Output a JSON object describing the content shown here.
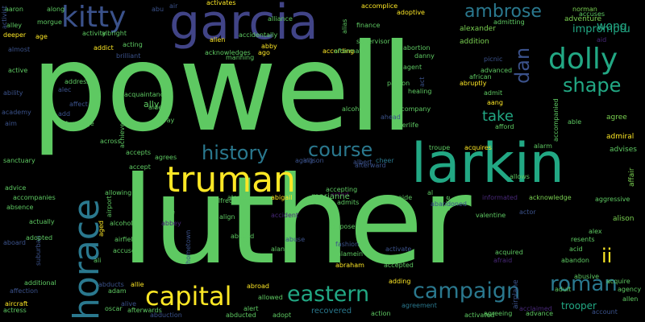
{
  "palette": {
    "background": "#000000",
    "yellow": "#fde725",
    "light_green": "#7ad151",
    "green": "#5ec962",
    "teal_green": "#22a884",
    "teal": "#2a788e",
    "blue": "#3b528b",
    "indigo": "#414487",
    "purple": "#482878",
    "dark_purple": "#440154"
  },
  "words": [
    "powell",
    "luther",
    "larkin",
    "garcia",
    "truman",
    "horace",
    "kitty",
    "dolly",
    "capital",
    "campaign",
    "eastern",
    "history",
    "course",
    "roman",
    "shape",
    "ambrose",
    "dan",
    "take",
    "ii",
    "wong",
    "impromptu",
    "alexander",
    "admitting",
    "addition",
    "norman",
    "accuses",
    "adventure",
    "aid",
    "advises",
    "affair",
    "admiral",
    "agree",
    "able",
    "accompanied",
    "afford",
    "alarm",
    "allows",
    "alice",
    "aggressive",
    "acknowledge",
    "alison",
    "alex",
    "acquired",
    "abandon",
    "abusive",
    "acquire",
    "agency",
    "allen",
    "account",
    "advance",
    "agreeing",
    "activated",
    "trooper",
    "adult",
    "airplane",
    "afraid",
    "acid",
    "resents",
    "valentine",
    "actor",
    "abandoned",
    "al",
    "aide",
    "alone",
    "activate",
    "accepted",
    "adding",
    "agreement",
    "action",
    "recovered",
    "abraham",
    "fashion",
    "alamein",
    "admits",
    "dispose",
    "accepting",
    "acted",
    "marianne",
    "aging",
    "allison",
    "albert",
    "cheer",
    "afterward",
    "alcohol",
    "afterlife",
    "accompany",
    "ahead",
    "healing",
    "pardon",
    "act",
    "agent",
    "danny",
    "abortion",
    "supervisor",
    "finance",
    "accomplice",
    "adoptive",
    "alias",
    "alliance",
    "activates",
    "air",
    "abu",
    "along",
    "morgue",
    "aaron",
    "activist",
    "alley",
    "deeper",
    "age",
    "activity",
    "albright",
    "acting",
    "brilliant",
    "addict",
    "alien",
    "accidentally",
    "abby",
    "according",
    "aftermath",
    "ago",
    "manning",
    "acknowledges",
    "almost",
    "active",
    "ability",
    "academy",
    "aim",
    "address",
    "alec",
    "affect",
    "add",
    "advantage",
    "acquaintance",
    "aided",
    "stray",
    "ally",
    "across",
    "accepts",
    "achieve",
    "accept",
    "agrees",
    "sanctuary",
    "advice",
    "accompanies",
    "absence",
    "actually",
    "allowing",
    "alcoholic",
    "abe",
    "alfred",
    "align",
    "abused",
    "alerted",
    "abigail",
    "airfield",
    "abbey",
    "aged",
    "airport",
    "aboard",
    "suburban",
    "adopted",
    "accused",
    "hometown",
    "ali",
    "alan",
    "ace",
    "abuse",
    "additional",
    "affection",
    "aircraft",
    "actress",
    "abducts",
    "allie",
    "adam",
    "oscar",
    "alive",
    "afterwards",
    "abduction",
    "abducted",
    "alert",
    "allowed",
    "adopt",
    "abroad",
    "accident",
    "aang",
    "admit",
    "picnic",
    "advanced",
    "african",
    "abruptly",
    "acquires",
    "troupe",
    "informated",
    "acclaimed"
  ]
}
